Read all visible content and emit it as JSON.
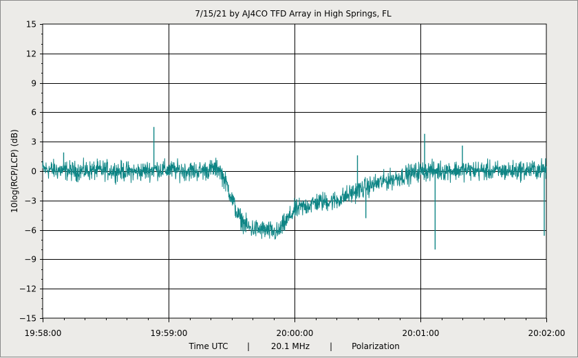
{
  "chart_data": {
    "type": "line",
    "title": "7/15/21  by  AJ4CO TFD Array  in  High Springs, FL",
    "ylabel": "10log(RCP/LCP) (dB)",
    "xlabel_parts": [
      "Time UTC",
      "|",
      "20.1 MHz",
      "|",
      "Polarization"
    ],
    "ylim": [
      -15,
      15
    ],
    "yticks": [
      15,
      12,
      9,
      6,
      3,
      0,
      -3,
      -6,
      -9,
      -12,
      -15
    ],
    "xlim_minutes": [
      0,
      4
    ],
    "xticks": [
      "19:58:00",
      "19:59:00",
      "20:00:00",
      "20:01:00",
      "20:02:00"
    ],
    "grid": true,
    "series": [
      {
        "color": "#0e8585",
        "x_time": [
          "19:58:00",
          "19:58:15",
          "19:58:30",
          "19:58:45",
          "19:58:54",
          "19:59:00",
          "19:59:15",
          "19:59:24",
          "19:59:28",
          "19:59:33",
          "19:59:38",
          "19:59:45",
          "19:59:52",
          "20:00:00",
          "20:00:10",
          "20:00:20",
          "20:00:30",
          "20:00:40",
          "20:00:50",
          "20:01:00",
          "20:01:20",
          "20:01:40",
          "20:02:00"
        ],
        "values": [
          0.2,
          0.0,
          0.1,
          -0.1,
          0.2,
          0.1,
          0.0,
          0.3,
          -1.5,
          -4.5,
          -5.8,
          -6.0,
          -6.3,
          -4.0,
          -3.2,
          -3.0,
          -2.0,
          -1.2,
          -0.6,
          0.0,
          0.1,
          0.0,
          0.2
        ]
      }
    ],
    "spikes": [
      {
        "x_time": "19:58:10",
        "value": 1.9
      },
      {
        "x_time": "19:58:53",
        "value": 4.5
      },
      {
        "x_time": "20:00:30",
        "value": 1.6
      },
      {
        "x_time": "20:00:34",
        "value": -4.8
      },
      {
        "x_time": "20:01:02",
        "value": 3.8
      },
      {
        "x_time": "20:01:07",
        "value": -8.0
      },
      {
        "x_time": "20:01:20",
        "value": 2.6
      },
      {
        "x_time": "20:01:59",
        "value": -6.6
      }
    ]
  }
}
